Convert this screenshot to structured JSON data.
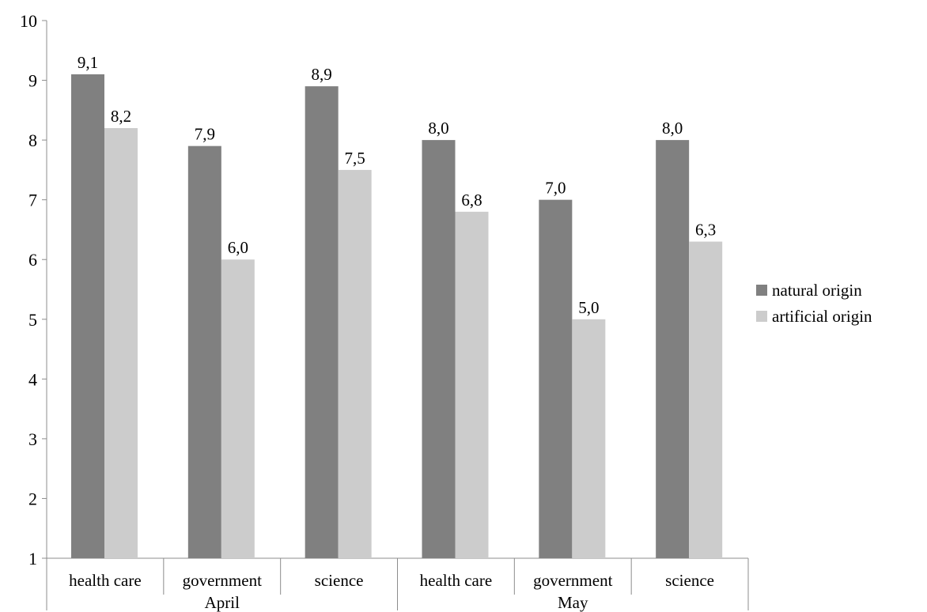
{
  "chart_data": {
    "type": "bar",
    "title": "",
    "xlabel": "",
    "ylabel": "",
    "ylim": [
      1,
      10
    ],
    "yticks": [
      "1",
      "2",
      "3",
      "4",
      "5",
      "6",
      "7",
      "8",
      "9",
      "10"
    ],
    "grid": false,
    "legend_position": "right",
    "categories": [
      "health care",
      "government",
      "science",
      "health care",
      "government",
      "science"
    ],
    "groups": [
      {
        "label": "April",
        "categories": [
          "health care",
          "government",
          "science"
        ]
      },
      {
        "label": "May",
        "categories": [
          "health care",
          "government",
          "science"
        ]
      }
    ],
    "series": [
      {
        "name": "natural origin",
        "color": "#808080",
        "values": [
          9.1,
          7.9,
          8.9,
          8.0,
          7.0,
          8.0
        ],
        "labels": [
          "9,1",
          "7,9",
          "8,9",
          "8,0",
          "7,0",
          "8,0"
        ]
      },
      {
        "name": "artificial origin",
        "color": "#cccccc",
        "values": [
          8.2,
          6.0,
          7.5,
          6.8,
          5.0,
          6.3
        ],
        "labels": [
          "8,2",
          "6,0",
          "7,5",
          "6,8",
          "5,0",
          "6,3"
        ]
      }
    ]
  }
}
